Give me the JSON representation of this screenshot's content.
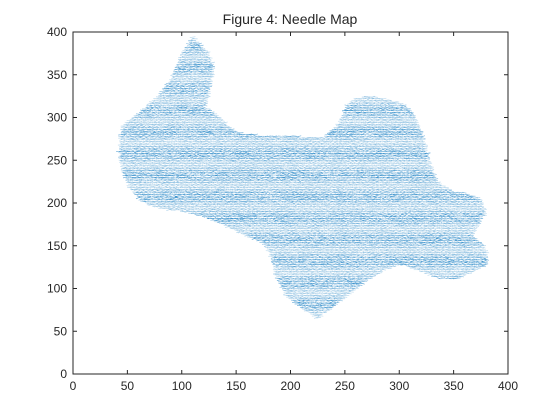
{
  "chart_data": {
    "type": "scatter",
    "title": "Figure 4: Needle Map",
    "xlabel": "",
    "ylabel": "",
    "xlim": [
      0,
      400
    ],
    "ylim": [
      0,
      400
    ],
    "xticks": [
      0,
      50,
      100,
      150,
      200,
      250,
      300,
      350,
      400
    ],
    "yticks": [
      0,
      50,
      100,
      150,
      200,
      250,
      300,
      350,
      400
    ],
    "grid": false,
    "series": [
      {
        "name": "needles",
        "color": "#0072BD",
        "region_outline": [
          [
            45,
            290
          ],
          [
            60,
            305
          ],
          [
            78,
            325
          ],
          [
            90,
            345
          ],
          [
            98,
            370
          ],
          [
            110,
            395
          ],
          [
            125,
            375
          ],
          [
            130,
            360
          ],
          [
            126,
            335
          ],
          [
            122,
            312
          ],
          [
            138,
            298
          ],
          [
            145,
            287
          ],
          [
            155,
            282
          ],
          [
            170,
            280
          ],
          [
            190,
            280
          ],
          [
            210,
            278
          ],
          [
            228,
            276
          ],
          [
            243,
            290
          ],
          [
            252,
            315
          ],
          [
            260,
            323
          ],
          [
            275,
            325
          ],
          [
            287,
            322
          ],
          [
            300,
            318
          ],
          [
            312,
            308
          ],
          [
            322,
            280
          ],
          [
            328,
            250
          ],
          [
            335,
            225
          ],
          [
            350,
            214
          ],
          [
            362,
            212
          ],
          [
            375,
            205
          ],
          [
            380,
            190
          ],
          [
            374,
            175
          ],
          [
            368,
            162
          ],
          [
            378,
            152
          ],
          [
            382,
            140
          ],
          [
            380,
            127
          ],
          [
            367,
            119
          ],
          [
            352,
            110
          ],
          [
            335,
            112
          ],
          [
            320,
            120
          ],
          [
            303,
            128
          ],
          [
            288,
            122
          ],
          [
            272,
            110
          ],
          [
            255,
            95
          ],
          [
            242,
            80
          ],
          [
            230,
            70
          ],
          [
            226,
            64
          ],
          [
            215,
            73
          ],
          [
            196,
            92
          ],
          [
            186,
            115
          ],
          [
            182,
            138
          ],
          [
            176,
            152
          ],
          [
            160,
            161
          ],
          [
            142,
            172
          ],
          [
            122,
            183
          ],
          [
            100,
            190
          ],
          [
            82,
            193
          ],
          [
            70,
            197
          ],
          [
            60,
            205
          ],
          [
            52,
            218
          ],
          [
            46,
            235
          ],
          [
            42,
            260
          ]
        ]
      }
    ]
  }
}
